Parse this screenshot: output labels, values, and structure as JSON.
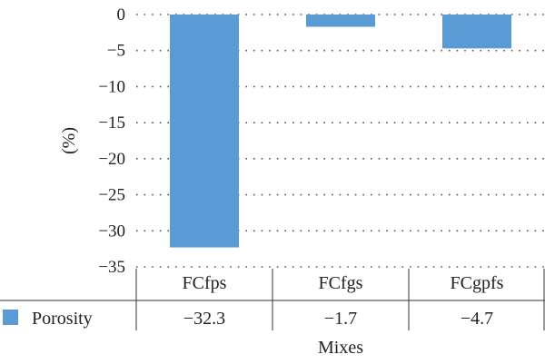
{
  "chart_data": {
    "type": "bar",
    "categories": [
      "FCfps",
      "FCfgs",
      "FCgpfs"
    ],
    "series": [
      {
        "name": "Porosity",
        "values": [
          -32.3,
          -1.7,
          -4.7
        ],
        "value_labels": [
          "−32.3",
          "−1.7",
          "−4.7"
        ]
      }
    ],
    "ylabel": "(%)",
    "xlabel": "Mixes",
    "ylim": [
      -35,
      0
    ],
    "yticks": [
      0,
      -5,
      -10,
      -15,
      -20,
      -25,
      -30,
      -35
    ],
    "ytick_labels": [
      "0",
      "−5",
      "−10",
      "−15",
      "−20",
      "−25",
      "−30",
      "−35"
    ],
    "grid": true,
    "legend": "data table below axis",
    "colors": {
      "bar": "#5b9bd5"
    }
  }
}
